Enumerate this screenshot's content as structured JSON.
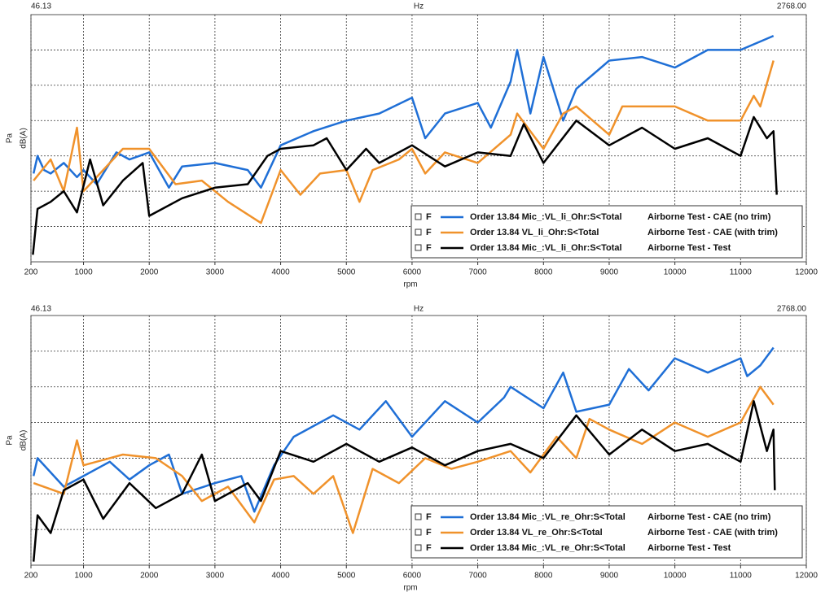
{
  "chart_data": [
    {
      "type": "line",
      "top_left": "46.13",
      "top_center": "Hz",
      "top_right": "2768.00",
      "xlabel": "rpm",
      "ylabel": "Pa",
      "ylabel2": "dB(A)",
      "xlim": [
        200,
        12000
      ],
      "xticks": [
        200,
        1000,
        2000,
        3000,
        4000,
        5000,
        6000,
        7000,
        8000,
        9000,
        10000,
        11000,
        12000
      ],
      "ylim": [
        0,
        7
      ],
      "ygrid": [
        1,
        2,
        3,
        4,
        5,
        6
      ],
      "grid": true,
      "series": [
        {
          "flag": "F",
          "name": "Order 13.84 Mic_:VL_li_Ohr:S<Total",
          "source": "Airborne Test - CAE (no trim)",
          "color": "#1f6fd6",
          "x": [
            240,
            300,
            400,
            500,
            700,
            900,
            1000,
            1200,
            1400,
            1500,
            1700,
            2000,
            2300,
            2500,
            3000,
            3500,
            3700,
            4000,
            4500,
            5000,
            5500,
            6000,
            6200,
            6500,
            7000,
            7200,
            7500,
            7600,
            7800,
            8000,
            8300,
            8500,
            9000,
            9500,
            10000,
            10500,
            11000,
            11500
          ],
          "values": [
            2.5,
            3.0,
            2.6,
            2.5,
            2.8,
            2.4,
            2.6,
            2.2,
            2.8,
            3.1,
            2.9,
            3.1,
            2.1,
            2.7,
            2.8,
            2.6,
            2.1,
            3.3,
            3.7,
            4.0,
            4.2,
            4.65,
            3.5,
            4.2,
            4.5,
            3.8,
            5.1,
            6.0,
            4.2,
            5.8,
            4.0,
            4.9,
            5.7,
            5.8,
            5.5,
            6.0,
            6.0,
            6.4
          ]
        },
        {
          "flag": "F",
          "name": "Order 13.84 VL_li_Ohr:S<Total",
          "source": "Airborne Test - CAE (with trim)",
          "color": "#f0922b",
          "x": [
            240,
            500,
            700,
            900,
            1000,
            1300,
            1600,
            2000,
            2400,
            2800,
            3200,
            3700,
            4000,
            4300,
            4600,
            5000,
            5200,
            5400,
            5800,
            6000,
            6200,
            6500,
            7000,
            7500,
            7600,
            8000,
            8300,
            8500,
            9000,
            9200,
            10000,
            10500,
            11000,
            11200,
            11300,
            11500
          ],
          "values": [
            2.3,
            2.9,
            2.0,
            3.8,
            2.0,
            2.6,
            3.2,
            3.2,
            2.2,
            2.3,
            1.7,
            1.1,
            2.6,
            1.9,
            2.5,
            2.6,
            1.7,
            2.6,
            2.9,
            3.2,
            2.5,
            3.1,
            2.8,
            3.6,
            4.2,
            3.2,
            4.2,
            4.4,
            3.6,
            4.4,
            4.4,
            4.0,
            4.0,
            4.7,
            4.4,
            5.7
          ]
        },
        {
          "flag": "F",
          "name": "Order 13.84 Mic_:VL_li_Ohr:S<Total",
          "source": "Airborne Test - Test",
          "color": "#000000",
          "x": [
            230,
            300,
            500,
            700,
            900,
            1100,
            1300,
            1600,
            1900,
            2000,
            2500,
            3000,
            3500,
            3800,
            4000,
            4500,
            4700,
            5000,
            5300,
            5500,
            6000,
            6500,
            7000,
            7500,
            7700,
            8000,
            8500,
            9000,
            9500,
            10000,
            10500,
            11000,
            11200,
            11400,
            11500,
            11550
          ],
          "values": [
            0.2,
            1.5,
            1.7,
            2.0,
            1.4,
            2.9,
            1.6,
            2.3,
            2.8,
            1.3,
            1.8,
            2.1,
            2.2,
            3.0,
            3.2,
            3.3,
            3.5,
            2.6,
            3.2,
            2.8,
            3.3,
            2.7,
            3.1,
            3.0,
            3.9,
            2.8,
            4.0,
            3.3,
            3.8,
            3.2,
            3.5,
            3.0,
            4.1,
            3.5,
            3.7,
            1.9
          ]
        }
      ]
    },
    {
      "type": "line",
      "top_left": "46.13",
      "top_center": "Hz",
      "top_right": "2768.00",
      "xlabel": "rpm",
      "ylabel": "Pa",
      "ylabel2": "dB(A)",
      "xlim": [
        200,
        12000
      ],
      "xticks": [
        200,
        1000,
        2000,
        3000,
        4000,
        5000,
        6000,
        7000,
        8000,
        9000,
        10000,
        11000,
        12000
      ],
      "ylim": [
        0,
        7
      ],
      "ygrid": [
        1,
        2,
        3,
        4,
        5,
        6
      ],
      "grid": true,
      "series": [
        {
          "flag": "F",
          "name": "Order 13.84 Mic_:VL_re_Ohr:S<Total",
          "source": "Airborne Test - CAE (no trim)",
          "color": "#1f6fd6",
          "x": [
            240,
            300,
            700,
            1000,
            1400,
            1700,
            2000,
            2300,
            2500,
            3000,
            3400,
            3600,
            3900,
            4200,
            4800,
            5200,
            5600,
            6000,
            6500,
            7000,
            7400,
            7500,
            8000,
            8300,
            8500,
            9000,
            9300,
            9600,
            10000,
            10500,
            11000,
            11100,
            11300,
            11500
          ],
          "values": [
            2.5,
            3.0,
            2.2,
            2.5,
            2.9,
            2.4,
            2.8,
            3.1,
            2.0,
            2.3,
            2.5,
            1.5,
            2.8,
            3.6,
            4.2,
            3.8,
            4.6,
            3.6,
            4.6,
            4.0,
            4.7,
            5.0,
            4.4,
            5.4,
            4.3,
            4.5,
            5.5,
            4.9,
            5.8,
            5.4,
            5.8,
            5.3,
            5.6,
            6.1
          ]
        },
        {
          "flag": "F",
          "name": "Order 13.84 VL_re_Ohr:S<Total",
          "source": "Airborne Test - CAE (with trim)",
          "color": "#f0922b",
          "x": [
            240,
            700,
            900,
            1000,
            1600,
            2100,
            2500,
            2800,
            3200,
            3600,
            3900,
            4200,
            4500,
            4800,
            5100,
            5400,
            5800,
            6200,
            6600,
            7000,
            7500,
            7800,
            8200,
            8500,
            8700,
            9000,
            9500,
            10000,
            10500,
            11000,
            11300,
            11500
          ],
          "values": [
            2.3,
            2.0,
            3.5,
            2.8,
            3.1,
            3.0,
            2.5,
            1.8,
            2.2,
            1.2,
            2.4,
            2.5,
            2.0,
            2.5,
            0.9,
            2.7,
            2.3,
            3.0,
            2.7,
            2.9,
            3.2,
            2.6,
            3.6,
            3.0,
            4.1,
            3.8,
            3.4,
            4.0,
            3.6,
            4.0,
            5.0,
            4.5
          ]
        },
        {
          "flag": "F",
          "name": "Order 13.84 Mic_:VL_re_Ohr:S<Total",
          "source": "Airborne Test - Test",
          "color": "#000000",
          "x": [
            240,
            300,
            500,
            700,
            1000,
            1300,
            1700,
            2100,
            2500,
            2800,
            3000,
            3500,
            3700,
            4000,
            4500,
            5000,
            5500,
            6000,
            6500,
            7000,
            7500,
            8000,
            8500,
            9000,
            9500,
            10000,
            10500,
            11000,
            11200,
            11400,
            11500,
            11520
          ],
          "values": [
            0.1,
            1.4,
            0.9,
            2.1,
            2.4,
            1.3,
            2.3,
            1.6,
            2.0,
            3.1,
            1.8,
            2.3,
            1.8,
            3.2,
            2.9,
            3.4,
            2.9,
            3.3,
            2.8,
            3.2,
            3.4,
            3.0,
            4.2,
            3.1,
            3.8,
            3.2,
            3.4,
            2.9,
            4.6,
            3.2,
            3.8,
            2.1
          ]
        }
      ]
    }
  ]
}
